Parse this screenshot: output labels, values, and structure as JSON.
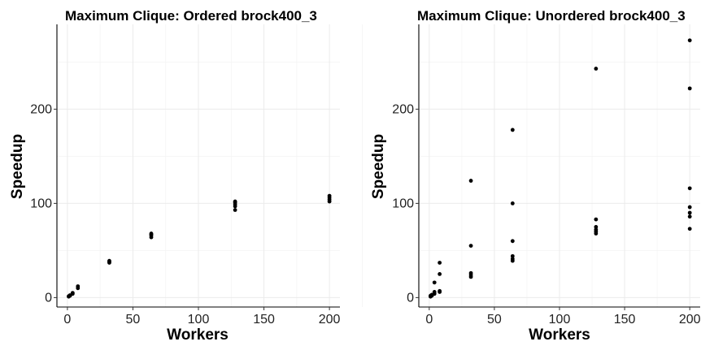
{
  "chart_data": [
    {
      "type": "scatter",
      "title": "Maximum Clique: Ordered brock400_3",
      "xlabel": "Workers",
      "ylabel": "Speedup",
      "xlim": [
        -8,
        208
      ],
      "ylim": [
        -10,
        290
      ],
      "xticks": [
        0,
        50,
        100,
        150,
        200
      ],
      "yticks": [
        0,
        100,
        200
      ],
      "grid": true,
      "points": [
        {
          "x": 1,
          "y": 1
        },
        {
          "x": 1,
          "y": 1.5
        },
        {
          "x": 2,
          "y": 2
        },
        {
          "x": 2,
          "y": 2.5
        },
        {
          "x": 4,
          "y": 4
        },
        {
          "x": 4,
          "y": 5
        },
        {
          "x": 8,
          "y": 10
        },
        {
          "x": 8,
          "y": 12
        },
        {
          "x": 32,
          "y": 37
        },
        {
          "x": 32,
          "y": 38
        },
        {
          "x": 32,
          "y": 39
        },
        {
          "x": 64,
          "y": 64
        },
        {
          "x": 64,
          "y": 66
        },
        {
          "x": 64,
          "y": 67
        },
        {
          "x": 64,
          "y": 68
        },
        {
          "x": 128,
          "y": 93
        },
        {
          "x": 128,
          "y": 97
        },
        {
          "x": 128,
          "y": 99
        },
        {
          "x": 128,
          "y": 101
        },
        {
          "x": 128,
          "y": 102
        },
        {
          "x": 200,
          "y": 102
        },
        {
          "x": 200,
          "y": 104
        },
        {
          "x": 200,
          "y": 106
        },
        {
          "x": 200,
          "y": 108
        }
      ]
    },
    {
      "type": "scatter",
      "title": "Maximum Clique: Unordered brock400_3",
      "xlabel": "Workers",
      "ylabel": "Speedup",
      "xlim": [
        -8,
        208
      ],
      "ylim": [
        -10,
        290
      ],
      "xticks": [
        0,
        50,
        100,
        150,
        200
      ],
      "yticks": [
        0,
        100,
        200
      ],
      "grid": true,
      "points": [
        {
          "x": 1,
          "y": 1
        },
        {
          "x": 1,
          "y": 2
        },
        {
          "x": 2,
          "y": 2
        },
        {
          "x": 2,
          "y": 3
        },
        {
          "x": 4,
          "y": 4
        },
        {
          "x": 4,
          "y": 6
        },
        {
          "x": 4,
          "y": 16
        },
        {
          "x": 8,
          "y": 6
        },
        {
          "x": 8,
          "y": 7
        },
        {
          "x": 8,
          "y": 25
        },
        {
          "x": 8,
          "y": 37
        },
        {
          "x": 32,
          "y": 22
        },
        {
          "x": 32,
          "y": 24
        },
        {
          "x": 32,
          "y": 26
        },
        {
          "x": 32,
          "y": 55
        },
        {
          "x": 32,
          "y": 124
        },
        {
          "x": 64,
          "y": 39
        },
        {
          "x": 64,
          "y": 41
        },
        {
          "x": 64,
          "y": 44
        },
        {
          "x": 64,
          "y": 60
        },
        {
          "x": 64,
          "y": 100
        },
        {
          "x": 64,
          "y": 178
        },
        {
          "x": 128,
          "y": 68
        },
        {
          "x": 128,
          "y": 70
        },
        {
          "x": 128,
          "y": 72
        },
        {
          "x": 128,
          "y": 75
        },
        {
          "x": 128,
          "y": 83
        },
        {
          "x": 128,
          "y": 243
        },
        {
          "x": 200,
          "y": 73
        },
        {
          "x": 200,
          "y": 86
        },
        {
          "x": 200,
          "y": 90
        },
        {
          "x": 200,
          "y": 96
        },
        {
          "x": 200,
          "y": 116
        },
        {
          "x": 200,
          "y": 222
        },
        {
          "x": 200,
          "y": 273
        }
      ]
    }
  ]
}
